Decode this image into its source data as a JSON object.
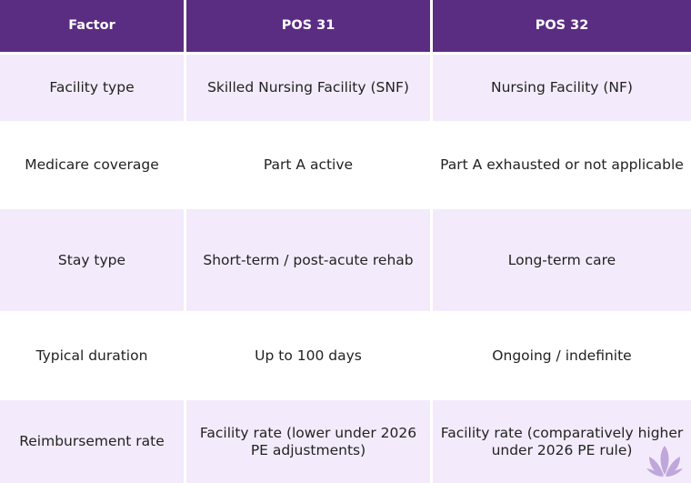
{
  "table": {
    "headers": [
      "Factor",
      "POS 31",
      "POS 32"
    ],
    "rows": [
      [
        "Facility type",
        "Skilled Nursing Facility (SNF)",
        "Nursing Facility (NF)"
      ],
      [
        "Medicare coverage",
        "Part A active",
        "Part A exhausted or not applicable"
      ],
      [
        "Stay type",
        "Short-term / post-acute rehab",
        "Long-term care"
      ],
      [
        "Typical duration",
        "Up to 100 days",
        "Ongoing / indefinite"
      ],
      [
        "Reimbursement rate",
        "Facility rate (lower under 2026 PE adjustments)",
        "Facility rate (comparatively higher under 2026 PE rule)"
      ]
    ]
  },
  "colors": {
    "header_bg": "#5b2d82",
    "row_alt_bg": "#f3ebfb",
    "logo": "#b79ad6"
  },
  "icons": {
    "watermark": "lotus-logo-icon"
  }
}
